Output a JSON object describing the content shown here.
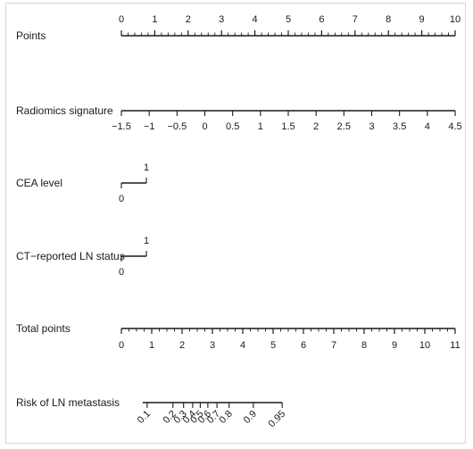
{
  "chart_data": {
    "type": "nomogram",
    "rows": [
      {
        "id": "points",
        "label": "Points",
        "range": [
          0,
          10
        ],
        "minor_step": 0.2,
        "tick_labels": [
          "0",
          "1",
          "2",
          "3",
          "4",
          "5",
          "6",
          "7",
          "8",
          "9",
          "10"
        ],
        "tick_values": [
          0,
          1,
          2,
          3,
          4,
          5,
          6,
          7,
          8,
          9,
          10
        ],
        "label_side": "above"
      },
      {
        "id": "radiomics",
        "label": "Radiomics signature",
        "range": [
          -1.5,
          4.5
        ],
        "tick_labels": [
          "−1.5",
          "−1",
          "−0.5",
          "0",
          "0.5",
          "1",
          "1.5",
          "2",
          "2.5",
          "3",
          "3.5",
          "4",
          "4.5"
        ],
        "tick_values": [
          -1.5,
          -1,
          -0.5,
          0,
          0.5,
          1,
          1.5,
          2,
          2.5,
          3,
          3.5,
          4,
          4.5
        ],
        "label_side": "below"
      },
      {
        "id": "cea",
        "label": "CEA level",
        "categories": [
          {
            "label": "0",
            "points": 0,
            "side": "below"
          },
          {
            "label": "1",
            "points": 0.75,
            "side": "above"
          }
        ]
      },
      {
        "id": "ct_ln",
        "label": "CT−reported LN status",
        "categories": [
          {
            "label": "0",
            "points": 0,
            "side": "below"
          },
          {
            "label": "1",
            "points": 0.75,
            "side": "above"
          }
        ]
      },
      {
        "id": "total",
        "label": "Total points",
        "range": [
          0,
          11
        ],
        "minor_step": 0.25,
        "tick_labels": [
          "0",
          "1",
          "2",
          "3",
          "4",
          "5",
          "6",
          "7",
          "8",
          "9",
          "10",
          "11"
        ],
        "tick_values": [
          0,
          1,
          2,
          3,
          4,
          5,
          6,
          7,
          8,
          9,
          10,
          11
        ],
        "label_side": "below"
      },
      {
        "id": "risk",
        "label": "Risk of LN metastasis",
        "tick_labels": [
          "0.1",
          "0.2",
          "0.3",
          "0.4",
          "0.5",
          "0.6",
          "0.7",
          "0.8",
          "0.9",
          "0.95"
        ],
        "tick_values": [
          0.1,
          0.2,
          0.3,
          0.4,
          0.5,
          0.6,
          0.7,
          0.8,
          0.9,
          0.95
        ],
        "total_points_at_ticks": [
          0.85,
          1.7,
          2.05,
          2.35,
          2.6,
          2.85,
          3.15,
          3.55,
          4.35,
          5.3
        ],
        "label_side": "below-rotated"
      }
    ]
  }
}
